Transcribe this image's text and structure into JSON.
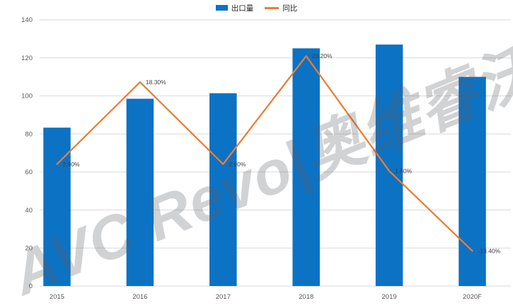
{
  "chart_data": {
    "type": "bar",
    "subtype": "combo-bar-line",
    "title": "",
    "categories": [
      "2015",
      "2016",
      "2017",
      "2018",
      "2019",
      "2020F"
    ],
    "series": [
      {
        "name": "出口量",
        "type": "bar",
        "axis": "left",
        "values": [
          83.3,
          98.5,
          101.4,
          125.0,
          127.0,
          110.0
        ]
      },
      {
        "name": "同比",
        "type": "line",
        "axis": "right",
        "values": [
          2.9,
          18.3,
          2.9,
          23.2,
          1.6,
          -13.4
        ],
        "point_labels": [
          "2.90%",
          "18.30%",
          "2.90%",
          "23.20%",
          "1.60%",
          "-13.40%"
        ]
      }
    ],
    "left_axis": {
      "min": 0,
      "max": 140,
      "tick_step": 20,
      "ticks": [
        0,
        20,
        40,
        60,
        80,
        100,
        120,
        140
      ]
    },
    "right_axis": {
      "min": -20,
      "max": 30,
      "visible": false
    },
    "grid": "horizontal",
    "legend_position": "top-center",
    "xlabel": "",
    "ylabel": ""
  },
  "legend": {
    "items": [
      {
        "label": "出口量",
        "marker": "bar-swatch-icon"
      },
      {
        "label": "同比",
        "marker": "line-swatch-icon"
      }
    ]
  },
  "watermark": {
    "text": "AVC Revo|奥维睿沃"
  },
  "colors": {
    "bar": "#0C72C4",
    "line": "#ED7D31",
    "grid": "#D9D9D9",
    "axis_text": "#595959",
    "label_text": "#3F3F3F"
  }
}
